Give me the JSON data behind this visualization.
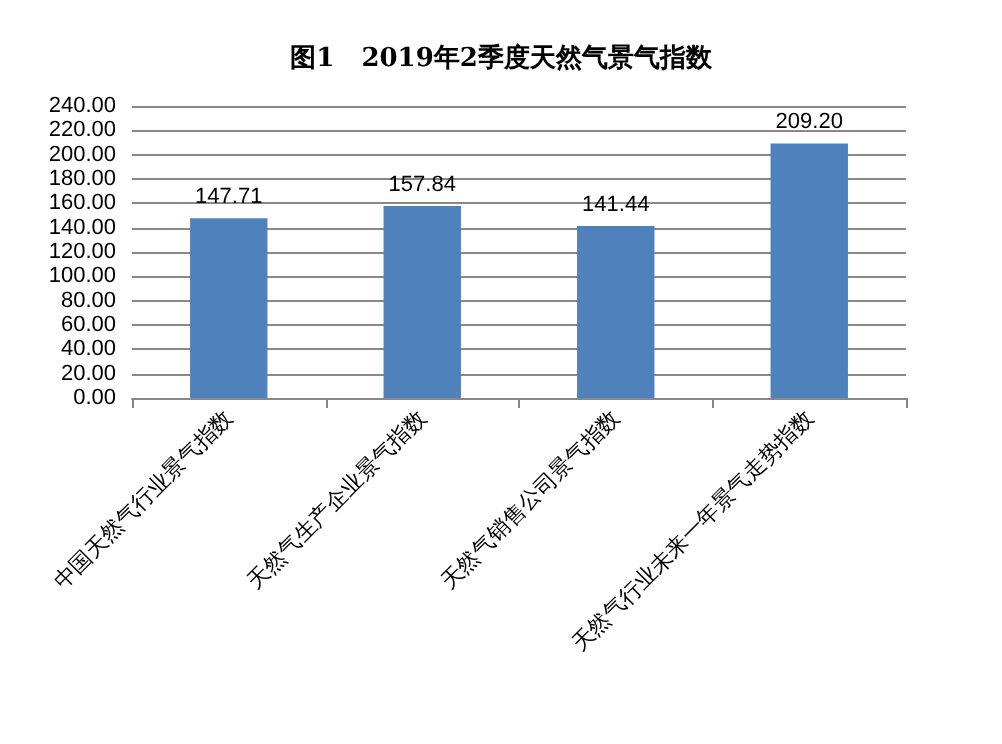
{
  "chart_data": {
    "type": "bar",
    "title": "图1   2019年2季度天然气景气指数",
    "categories": [
      "中国天然气行业景气指数",
      "天然气生产企业景气指数",
      "天然气销售公司景气指数",
      "天然气行业未来一年景气走势指数"
    ],
    "values": [
      147.71,
      157.84,
      141.44,
      209.2
    ],
    "value_labels": [
      "147.71",
      "157.84",
      "141.44",
      "209.20"
    ],
    "color": "#4f81bd",
    "ylim": [
      0,
      240
    ],
    "yticks": [
      {
        "value": 0,
        "label": "0.00"
      },
      {
        "value": 20,
        "label": "20.00"
      },
      {
        "value": 40,
        "label": "40.00"
      },
      {
        "value": 60,
        "label": "60.00"
      },
      {
        "value": 80,
        "label": "80.00"
      },
      {
        "value": 100,
        "label": "100.00"
      },
      {
        "value": 120,
        "label": "120.00"
      },
      {
        "value": 140,
        "label": "140.00"
      },
      {
        "value": 160,
        "label": "160.00"
      },
      {
        "value": 180,
        "label": "180.00"
      },
      {
        "value": 200,
        "label": "200.00"
      },
      {
        "value": 220,
        "label": "220.00"
      },
      {
        "value": 240,
        "label": "240.00"
      }
    ],
    "grid": "y"
  }
}
